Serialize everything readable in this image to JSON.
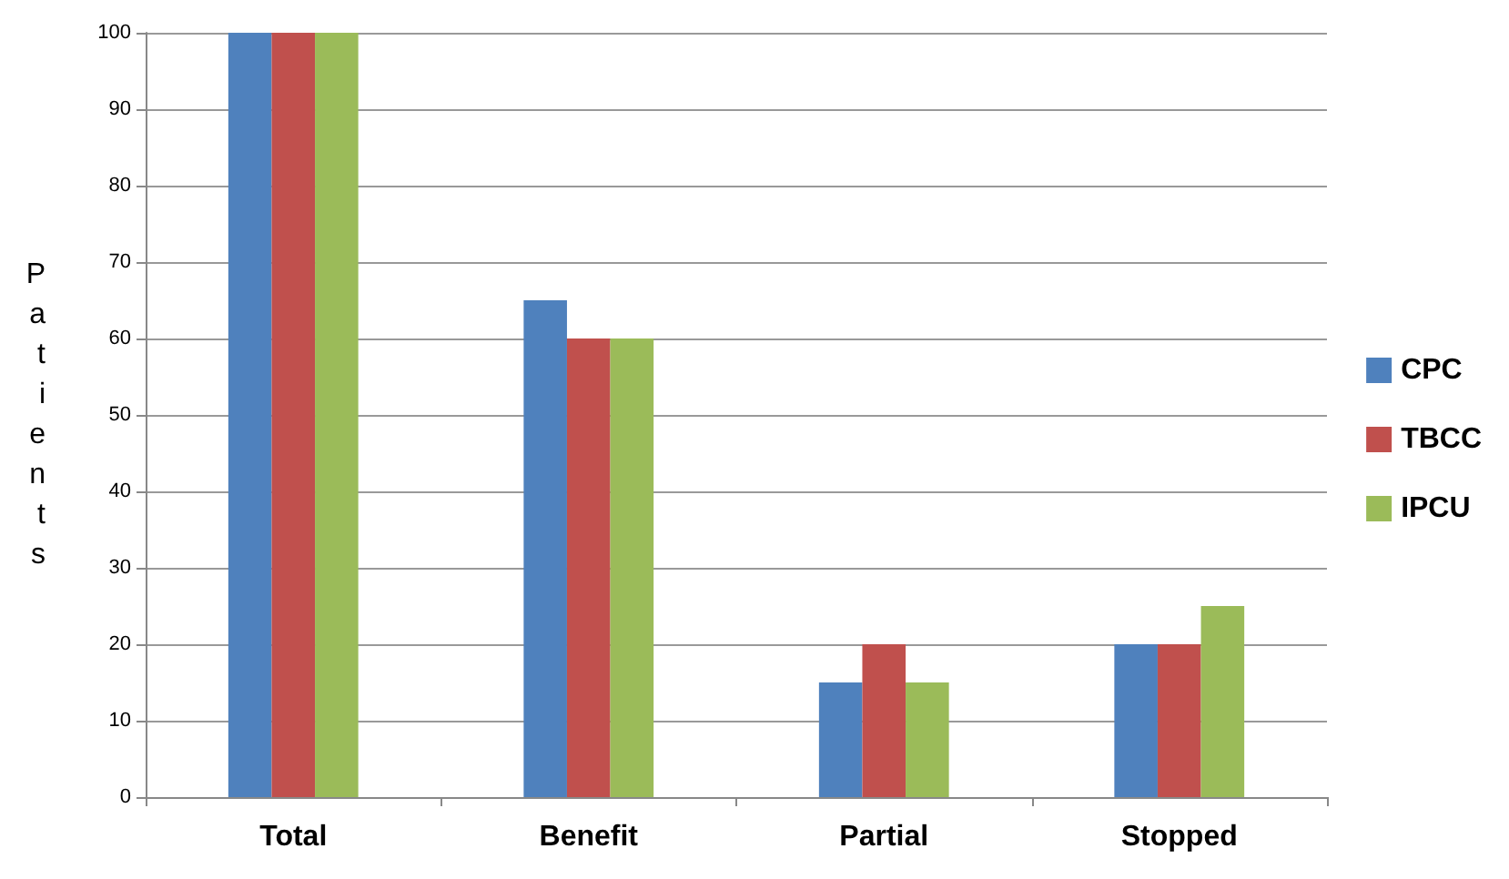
{
  "chart_data": {
    "type": "bar",
    "ylabel": "Patients",
    "categories": [
      "Total",
      "Benefit",
      "Partial",
      "Stopped"
    ],
    "series": [
      {
        "name": "CPC",
        "color": "#4f81bd",
        "values": [
          100,
          65,
          15,
          20
        ]
      },
      {
        "name": "TBCC",
        "color": "#c0504d",
        "values": [
          100,
          60,
          20,
          20
        ]
      },
      {
        "name": "IPCU",
        "color": "#9bbb59",
        "values": [
          100,
          60,
          15,
          25
        ]
      }
    ],
    "ylim": [
      0,
      100
    ],
    "yticks": [
      0,
      10,
      20,
      30,
      40,
      50,
      60,
      70,
      80,
      90,
      100
    ],
    "grid": "y",
    "legend": "right"
  }
}
